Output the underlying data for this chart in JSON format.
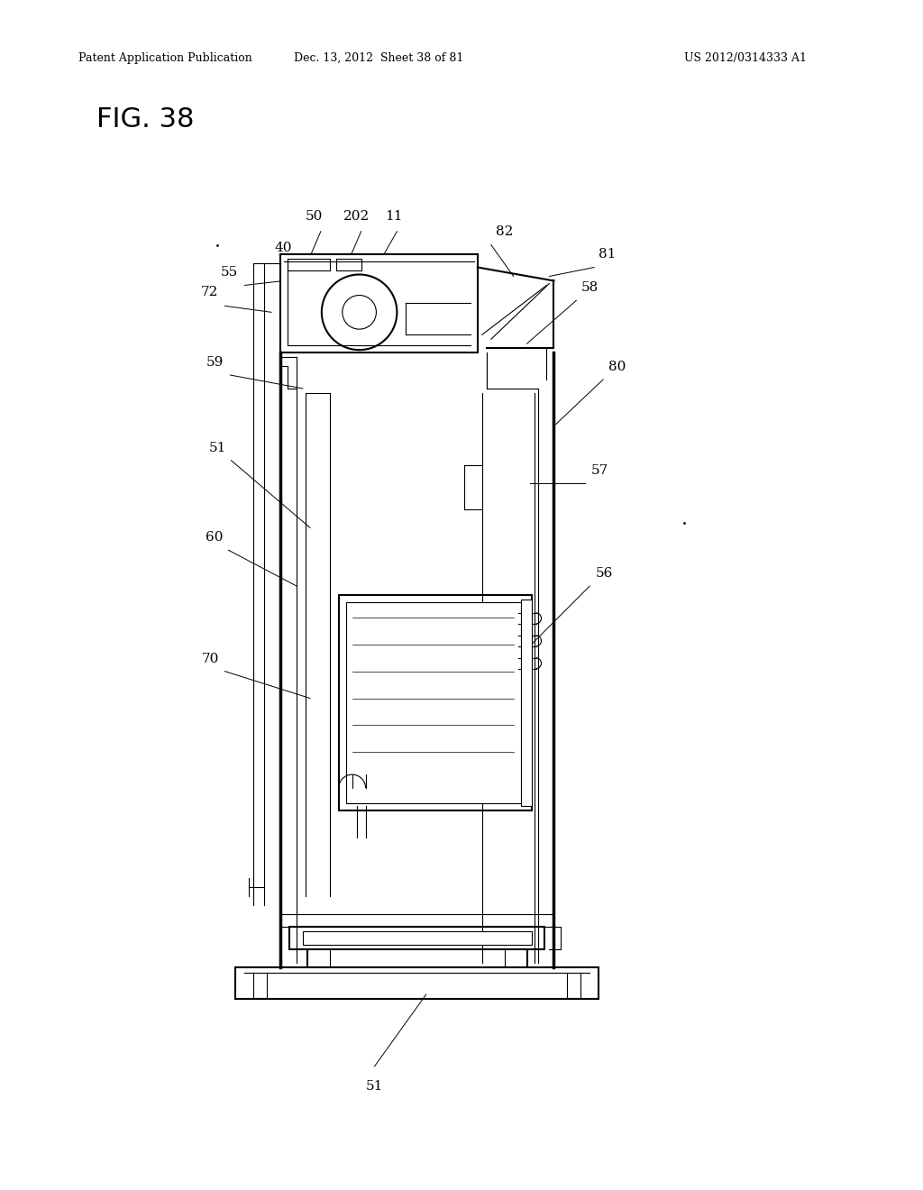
{
  "title": "FIG. 38",
  "header_left": "Patent Application Publication",
  "header_mid": "Dec. 13, 2012  Sheet 38 of 81",
  "header_right": "US 2012/0314333 A1",
  "bg_color": "#ffffff"
}
